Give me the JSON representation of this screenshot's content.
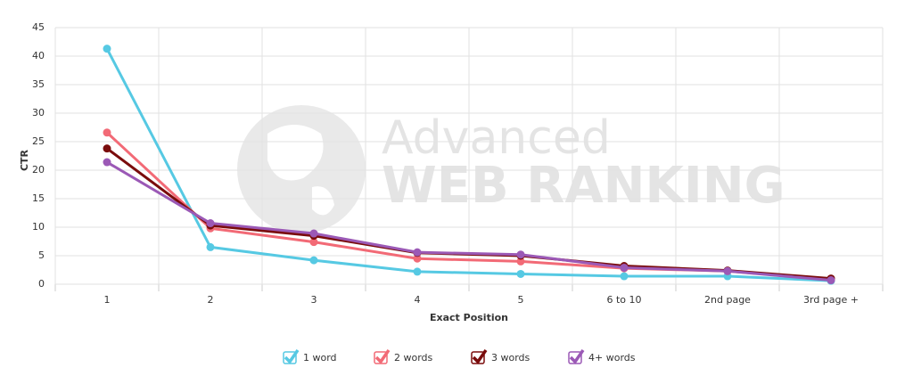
{
  "chart_data": {
    "type": "line",
    "watermark": [
      "Advanced",
      "WEB RANKING"
    ],
    "xlabel": "Exact Position",
    "ylabel": "CTR",
    "categories": [
      "1",
      "2",
      "3",
      "4",
      "5",
      "6 to 10",
      "2nd page",
      "3rd page +"
    ],
    "series": [
      {
        "name": "1 word",
        "color": "#56c9e3",
        "values": [
          41.3,
          6.5,
          4.2,
          2.2,
          1.8,
          1.4,
          1.4,
          0.6
        ]
      },
      {
        "name": "2 words",
        "color": "#f26a76",
        "values": [
          26.6,
          9.8,
          7.4,
          4.5,
          4.0,
          2.8,
          2.3,
          0.8
        ]
      },
      {
        "name": "3 words",
        "color": "#7a0c0c",
        "values": [
          23.8,
          10.3,
          8.5,
          5.5,
          5.0,
          3.2,
          2.4,
          1.0
        ]
      },
      {
        "name": "4+ words",
        "color": "#9b59b6",
        "values": [
          21.4,
          10.7,
          8.9,
          5.6,
          5.2,
          2.9,
          2.3,
          0.7
        ]
      }
    ],
    "ylim": [
      0,
      45
    ],
    "yticks": [
      0,
      5,
      10,
      15,
      20,
      25,
      30,
      35,
      40,
      45
    ],
    "grid": true
  }
}
